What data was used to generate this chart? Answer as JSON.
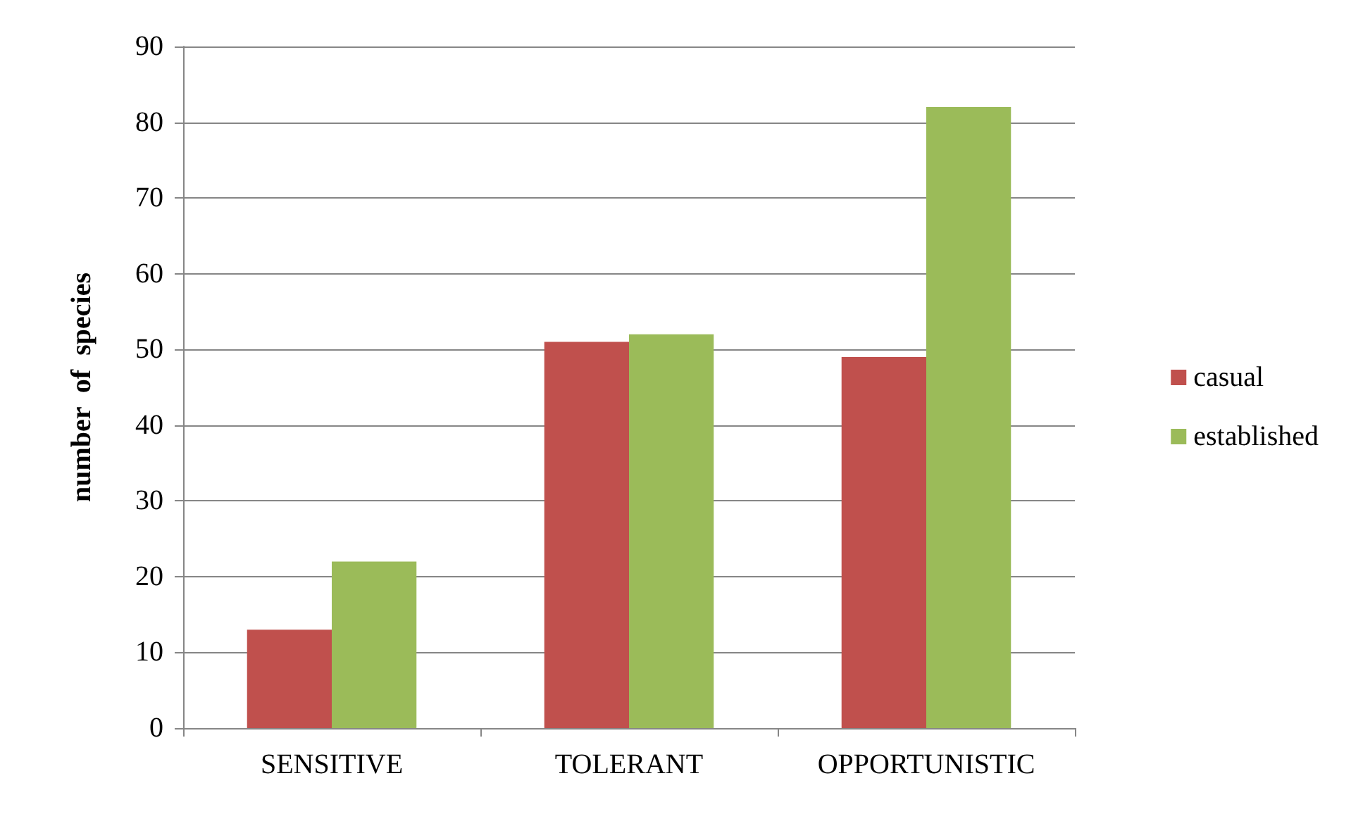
{
  "chart_data": {
    "type": "bar",
    "ylabel": "number  of  species",
    "categories": [
      "SENSITIVE",
      "TOLERANT",
      "OPPORTUNISTIC"
    ],
    "series": [
      {
        "name": "casual",
        "color": "#c0504d",
        "values": [
          13,
          51,
          49
        ]
      },
      {
        "name": "established",
        "color": "#9bbb59",
        "values": [
          22,
          52,
          82
        ]
      }
    ],
    "ylim": [
      0,
      90
    ],
    "yticks": [
      0,
      10,
      20,
      30,
      40,
      50,
      60,
      70,
      80,
      90
    ],
    "grid": "y",
    "legend": "right"
  }
}
